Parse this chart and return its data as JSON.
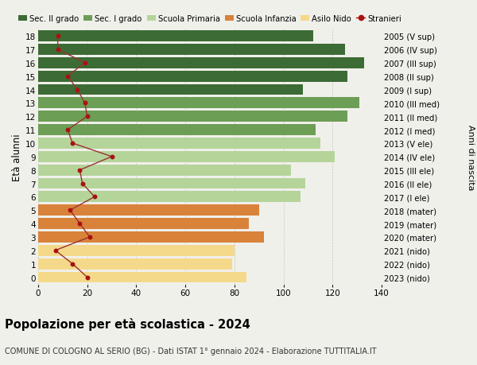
{
  "ages": [
    18,
    17,
    16,
    15,
    14,
    13,
    12,
    11,
    10,
    9,
    8,
    7,
    6,
    5,
    4,
    3,
    2,
    1,
    0
  ],
  "right_labels": [
    "2005 (V sup)",
    "2006 (IV sup)",
    "2007 (III sup)",
    "2008 (II sup)",
    "2009 (I sup)",
    "2010 (III med)",
    "2011 (II med)",
    "2012 (I med)",
    "2013 (V ele)",
    "2014 (IV ele)",
    "2015 (III ele)",
    "2016 (II ele)",
    "2017 (I ele)",
    "2018 (mater)",
    "2019 (mater)",
    "2020 (mater)",
    "2021 (nido)",
    "2022 (nido)",
    "2023 (nido)"
  ],
  "bar_values": [
    112,
    125,
    133,
    126,
    108,
    131,
    126,
    113,
    115,
    121,
    103,
    109,
    107,
    90,
    86,
    92,
    80,
    79,
    85
  ],
  "bar_colors": [
    "#3d6b35",
    "#3d6b35",
    "#3d6b35",
    "#3d6b35",
    "#3d6b35",
    "#6d9e55",
    "#6d9e55",
    "#6d9e55",
    "#b5d49a",
    "#b5d49a",
    "#b5d49a",
    "#b5d49a",
    "#b5d49a",
    "#d9823a",
    "#d9823a",
    "#d9823a",
    "#f5d98b",
    "#f5d98b",
    "#f5d98b"
  ],
  "stranieri_values": [
    8,
    8,
    19,
    12,
    16,
    19,
    20,
    12,
    14,
    30,
    17,
    18,
    23,
    13,
    17,
    21,
    7,
    14,
    20
  ],
  "title": "Popolazione per età scolastica - 2024",
  "subtitle": "COMUNE DI COLOGNO AL SERIO (BG) - Dati ISTAT 1° gennaio 2024 - Elaborazione TUTTITALIA.IT",
  "ylabel_label": "Età alunni",
  "right_axis_label": "Anni di nascita",
  "xlim": [
    0,
    140
  ],
  "xticks": [
    0,
    20,
    40,
    60,
    80,
    100,
    120,
    140
  ],
  "legend_labels": [
    "Sec. II grado",
    "Sec. I grado",
    "Scuola Primaria",
    "Scuola Infanzia",
    "Asilo Nido",
    "Stranieri"
  ],
  "legend_colors": [
    "#3d6b35",
    "#6d9e55",
    "#b5d49a",
    "#d9823a",
    "#f5d98b",
    "#aa1111"
  ],
  "bg_color": "#f0f0eb",
  "stranieri_color": "#aa1111",
  "line_color": "#993333"
}
